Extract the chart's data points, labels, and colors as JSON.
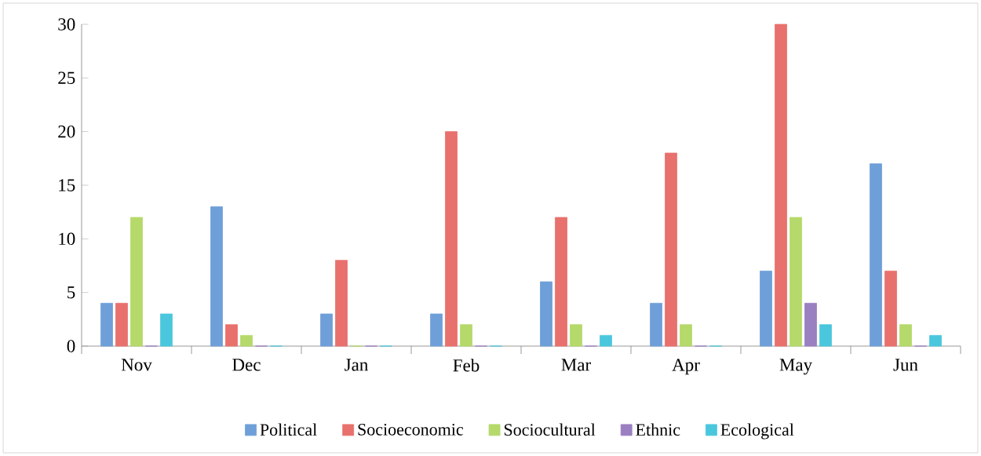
{
  "chart_data": {
    "type": "bar",
    "categories": [
      "Nov",
      "Dec",
      "Jan",
      "Feb",
      "Mar",
      "Apr",
      "May",
      "Jun"
    ],
    "series": [
      {
        "name": "Political",
        "color": "#6f9fd8",
        "values": [
          4,
          13,
          3,
          3,
          6,
          4,
          7,
          17
        ]
      },
      {
        "name": "Socioeconomic",
        "color": "#e8716d",
        "values": [
          4,
          2,
          8,
          20,
          12,
          18,
          30,
          7
        ]
      },
      {
        "name": "Sociocultural",
        "color": "#b5d96a",
        "values": [
          12,
          1,
          0,
          2,
          2,
          2,
          12,
          2
        ]
      },
      {
        "name": "Ethnic",
        "color": "#9a7fc1",
        "values": [
          0,
          0,
          0,
          0,
          0,
          0,
          4,
          0
        ]
      },
      {
        "name": "Ecological",
        "color": "#4bc7dd",
        "values": [
          3,
          0,
          0,
          0,
          1,
          0,
          2,
          1
        ]
      }
    ],
    "ylim": [
      0,
      30
    ],
    "yticks": [
      0,
      5,
      10,
      15,
      20,
      25,
      30
    ],
    "legend": "bottom"
  }
}
